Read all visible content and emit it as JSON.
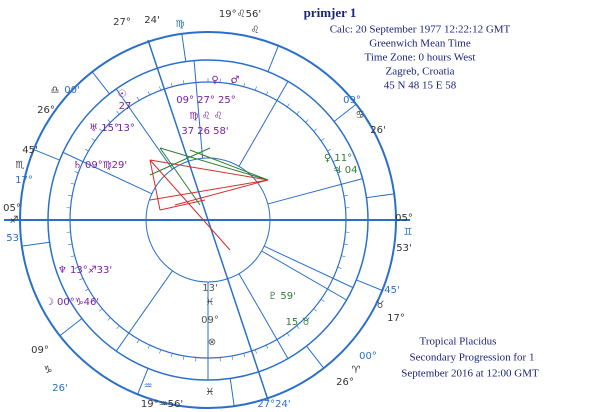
{
  "header": {
    "title": "primjer 1",
    "lines": [
      "Calc: 20 September 1977  12:22:12 GMT",
      "Greenwich Mean Time",
      "Time Zone: 0 hours West",
      "Zagreb, Croatia",
      "45 N 48    15 E 58"
    ]
  },
  "footer": {
    "lines": [
      "Tropical Placidus",
      "Secondary Progression  for 1",
      "September 2016 at 12:00 GMT"
    ]
  },
  "wheel": {
    "labels": [
      "27°",
      "24'",
      "♍",
      "19°♌56'",
      "♌",
      "09°",
      "♋",
      "26'",
      "♊",
      "05°",
      "53'",
      "45'",
      "17°",
      "♉",
      "00°",
      "♈",
      "26°",
      "27°24'",
      "♓",
      "19°♒56'",
      "♒",
      "09°",
      "♑",
      "26'",
      "05°",
      "♐",
      "53'",
      "45'",
      "♏",
      "17°",
      "26°",
      "♎",
      "00'",
      "♄ 09°♍29'",
      "♆ 13°♐33'",
      "☽ 00°♑46'",
      "☉",
      "27",
      "♅ 15°",
      "13°",
      "09° 27° 25°",
      "♍ ♌ ♌",
      "37  26  58'",
      "♀ 11°",
      "♃ 04",
      "♇ 59'",
      "15 ♉",
      "13'",
      "♓",
      "09°",
      "⊗",
      "♀",
      "♂"
    ]
  }
}
